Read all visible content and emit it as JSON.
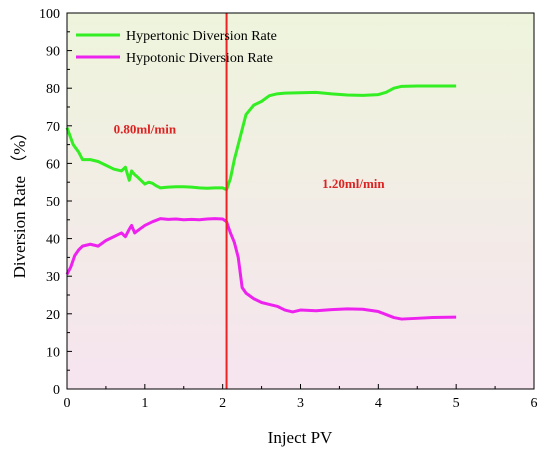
{
  "chart_data": {
    "type": "line",
    "xlabel": "Inject PV",
    "ylabel": "Diversion Rate （%）",
    "xlim": [
      0,
      6
    ],
    "ylim": [
      0,
      100
    ],
    "xticks": [
      "0",
      "1",
      "2",
      "3",
      "4",
      "5",
      "6"
    ],
    "yticks": [
      "0",
      "10",
      "20",
      "30",
      "40",
      "50",
      "60",
      "70",
      "80",
      "90",
      "100"
    ],
    "legend_position": "top-left",
    "background": {
      "top": "#eef5dc",
      "bottom": "#f6e4ef"
    },
    "series": [
      {
        "name": "Hypertonic Diversion Rate",
        "color": "#33ee22",
        "x": [
          0,
          0.08,
          0.15,
          0.2,
          0.3,
          0.4,
          0.5,
          0.6,
          0.7,
          0.75,
          0.8,
          0.83,
          0.87,
          0.9,
          1.0,
          1.05,
          1.1,
          1.15,
          1.2,
          1.3,
          1.4,
          1.5,
          1.6,
          1.7,
          1.8,
          1.9,
          2.0,
          2.05,
          2.1,
          2.15,
          2.2,
          2.3,
          2.4,
          2.5,
          2.6,
          2.7,
          2.8,
          3.0,
          3.2,
          3.4,
          3.6,
          3.8,
          3.9,
          4.0,
          4.1,
          4.2,
          4.3,
          4.5,
          4.7,
          5.0
        ],
        "y": [
          69.5,
          65,
          63,
          61,
          61,
          60.5,
          59.5,
          58.5,
          58,
          59,
          55.5,
          58,
          57,
          56.5,
          54.5,
          55,
          54.7,
          54,
          53.5,
          53.7,
          53.8,
          53.8,
          53.7,
          53.5,
          53.4,
          53.5,
          53.5,
          53,
          56,
          61,
          65,
          73,
          75.5,
          76.5,
          78,
          78.5,
          78.7,
          78.8,
          78.9,
          78.5,
          78.2,
          78.1,
          78.2,
          78.3,
          78.9,
          80,
          80.5,
          80.6,
          80.6,
          80.6
        ]
      },
      {
        "name": "Hypotonic Diversion Rate",
        "color": "#ee22ee",
        "x": [
          0,
          0.05,
          0.1,
          0.15,
          0.2,
          0.3,
          0.4,
          0.5,
          0.6,
          0.7,
          0.75,
          0.8,
          0.83,
          0.87,
          0.9,
          1.0,
          1.1,
          1.2,
          1.3,
          1.4,
          1.5,
          1.6,
          1.7,
          1.8,
          1.9,
          2.0,
          2.05,
          2.1,
          2.15,
          2.2,
          2.25,
          2.3,
          2.4,
          2.5,
          2.6,
          2.7,
          2.8,
          2.9,
          3.0,
          3.2,
          3.4,
          3.6,
          3.8,
          4.0,
          4.1,
          4.2,
          4.3,
          4.5,
          4.7,
          5.0
        ],
        "y": [
          30.5,
          32.5,
          35.5,
          37,
          38,
          38.5,
          38,
          39.5,
          40.5,
          41.5,
          40.5,
          42.5,
          43.5,
          41.5,
          42,
          43.5,
          44.5,
          45.3,
          45.1,
          45.2,
          45,
          45.1,
          45,
          45.2,
          45.3,
          45.2,
          44.5,
          41.5,
          39,
          35,
          27,
          25.5,
          24,
          23,
          22.5,
          22,
          21,
          20.5,
          21,
          20.8,
          21.1,
          21.3,
          21.2,
          20.6,
          19.8,
          19,
          18.6,
          18.8,
          19,
          19.1
        ]
      }
    ],
    "vertical_line": {
      "x": 2.05,
      "color": "#ee2222"
    },
    "annotations": [
      {
        "text": "0.80ml/min",
        "x": 1.0,
        "y": 68,
        "color": "#dd2222"
      },
      {
        "text": "1.20ml/min",
        "x": 3.68,
        "y": 53.5,
        "color": "#dd2222"
      }
    ]
  }
}
